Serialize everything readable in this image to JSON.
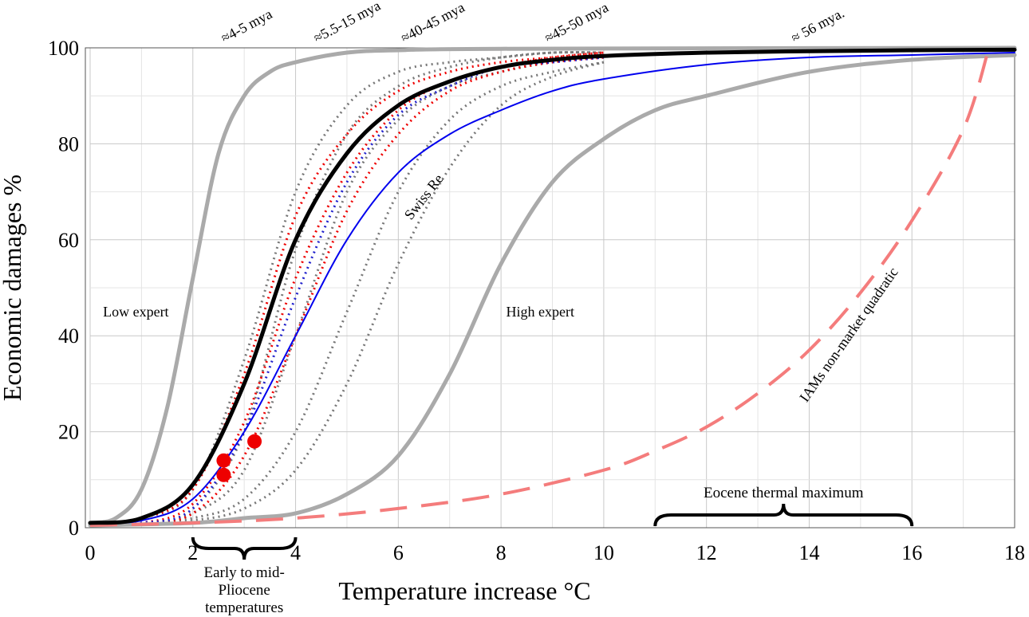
{
  "chart_data": {
    "type": "line",
    "xlabel": "Temperature increase °C",
    "ylabel": "Economic damages %",
    "xlim": [
      0,
      18
    ],
    "ylim": [
      0,
      100
    ],
    "xticks": [
      0,
      2,
      4,
      6,
      8,
      10,
      12,
      14,
      16,
      18
    ],
    "yticks": [
      0,
      20,
      40,
      60,
      80,
      100
    ],
    "grid": true,
    "series": [
      {
        "name": "Low expert",
        "style": "solid",
        "color": "#aaaaaa",
        "points": [
          [
            0,
            1
          ],
          [
            0.5,
            2
          ],
          [
            1,
            8
          ],
          [
            1.5,
            25
          ],
          [
            2,
            52
          ],
          [
            2.5,
            78
          ],
          [
            3,
            90
          ],
          [
            3.5,
            95
          ],
          [
            4,
            97
          ],
          [
            5,
            99
          ],
          [
            6,
            99.5
          ],
          [
            8,
            99.8
          ],
          [
            18,
            100
          ]
        ]
      },
      {
        "name": "High expert",
        "style": "solid",
        "color": "#aaaaaa",
        "points": [
          [
            0,
            0.5
          ],
          [
            2,
            1
          ],
          [
            3,
            2
          ],
          [
            4,
            3
          ],
          [
            5,
            7
          ],
          [
            6,
            15
          ],
          [
            7,
            32
          ],
          [
            8,
            55
          ],
          [
            9,
            72
          ],
          [
            10,
            81
          ],
          [
            11,
            87
          ],
          [
            12,
            90
          ],
          [
            14,
            95
          ],
          [
            16,
            97.5
          ],
          [
            18,
            98.5
          ]
        ]
      },
      {
        "name": "Swiss Re",
        "style": "solid",
        "color": "#0000ee",
        "points": [
          [
            0,
            1
          ],
          [
            1,
            1.5
          ],
          [
            2,
            6
          ],
          [
            3,
            20
          ],
          [
            4,
            40
          ],
          [
            5,
            60
          ],
          [
            6,
            74
          ],
          [
            7,
            82
          ],
          [
            8,
            87
          ],
          [
            9,
            91
          ],
          [
            10,
            93.5
          ],
          [
            12,
            96.5
          ],
          [
            14,
            98
          ],
          [
            16,
            98.5
          ],
          [
            18,
            99
          ]
        ]
      },
      {
        "name": "IAMs non-market quadratic",
        "style": "dashed",
        "color": "#f47c7c",
        "points": [
          [
            0,
            0.5
          ],
          [
            2,
            1
          ],
          [
            4,
            2
          ],
          [
            6,
            4
          ],
          [
            8,
            7
          ],
          [
            10,
            12
          ],
          [
            11,
            16
          ],
          [
            12,
            21
          ],
          [
            13,
            28
          ],
          [
            14,
            37
          ],
          [
            15,
            49
          ],
          [
            16,
            64
          ],
          [
            17,
            83
          ],
          [
            17.5,
            100
          ]
        ]
      },
      {
        "name": "",
        "style": "solid",
        "color": "#000000",
        "points": [
          [
            0,
            1
          ],
          [
            1,
            2
          ],
          [
            2,
            9
          ],
          [
            3,
            30
          ],
          [
            4,
            60
          ],
          [
            5,
            78
          ],
          [
            6,
            88
          ],
          [
            7,
            93
          ],
          [
            8,
            96
          ],
          [
            9,
            97.5
          ],
          [
            10,
            98.3
          ],
          [
            12,
            99
          ],
          [
            14,
            99.3
          ],
          [
            16,
            99.5
          ],
          [
            18,
            99.6
          ]
        ]
      }
    ],
    "ensemble": {
      "x": [
        1,
        2,
        3,
        4,
        5,
        6,
        7,
        8,
        9,
        10
      ],
      "gray": [
        [
          1,
          3,
          12,
          40,
          70,
          85,
          92,
          95,
          97,
          98
        ],
        [
          1,
          2,
          6,
          20,
          45,
          70,
          85,
          92,
          95,
          97
        ],
        [
          1,
          4,
          20,
          58,
          82,
          92,
          96,
          98,
          99,
          99
        ],
        [
          1,
          1.5,
          4,
          12,
          30,
          55,
          75,
          88,
          94,
          97
        ],
        [
          2,
          8,
          35,
          70,
          88,
          95,
          97,
          98,
          99,
          99
        ]
      ],
      "red": [
        [
          1,
          5,
          22,
          52,
          74,
          87,
          93,
          96,
          98,
          99
        ],
        [
          1,
          3,
          15,
          40,
          66,
          82,
          91,
          95,
          97,
          98
        ],
        [
          2,
          8,
          32,
          65,
          82,
          91,
          95,
          97,
          98,
          99
        ]
      ],
      "blue": [
        [
          1,
          4,
          20,
          48,
          72,
          86,
          92,
          96,
          97,
          98
        ]
      ]
    },
    "markers": [
      [
        2.6,
        14
      ],
      [
        2.6,
        11
      ],
      [
        3.2,
        18
      ]
    ],
    "annotations": {
      "low_expert": "Low expert",
      "high_expert": "High expert",
      "swiss_re": "Swiss Re",
      "iams": "IAMs non-market quadratic",
      "eocene": "Eocene thermal maximum",
      "pliocene_1": "Early to mid-",
      "pliocene_2": "Pliocene",
      "pliocene_3": "temperatures",
      "top": [
        {
          "x": 2.8,
          "label": "≈4-5 mya"
        },
        {
          "x": 4.6,
          "label": "≈5.5-15 mya"
        },
        {
          "x": 6.3,
          "label": "≈40-45 mya"
        },
        {
          "x": 9.1,
          "label": "≈45-50 mya"
        },
        {
          "x": 13.9,
          "label": "≈ 56 mya."
        }
      ]
    }
  }
}
